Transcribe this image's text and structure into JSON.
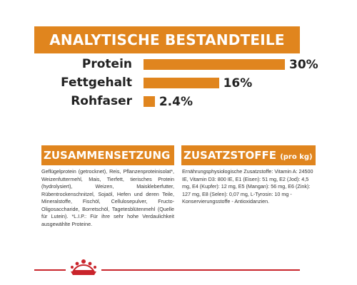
{
  "analysis": {
    "title": "ANALYTISCHE BESTANDTEILE",
    "rows": [
      {
        "label": "Protein",
        "value_text": "30%",
        "percent": 30
      },
      {
        "label": "Fettgehalt",
        "value_text": "16%",
        "percent": 16
      },
      {
        "label": "Rohfaser",
        "value_text": "2.4%",
        "percent": 2.4
      }
    ]
  },
  "composition": {
    "title": "ZUSAMMENSETZUNG",
    "text": "Geflügelprotein (getrocknet), Reis, Pflanzenproteinisolat*, Weizenfuttermehl, Mais, Tierfett, tierisches Protein (hydrolysiert), Weizen, Maiskleberfutter, Rübentrockenschnitzel, Sojaöl, Hefen und deren Teile, Mineralstoffe, Fischöl, Cellulosepulver, Fructo-Oligosaccharide, Borretschöl, Tagetesblütenmehl (Quelle für Lutein). *L.I.P.: Für ihre sehr hohe Verdaulichkeit ausgewählte Proteine."
  },
  "additives": {
    "title": "ZUSATZSTOFFE",
    "title_suffix": "(pro kg)",
    "text": "Ernährungsphysiologische Zusatzstoffe: Vitamin A: 24500 IE, Vitamin D3: 800 IE, E1 (Eisen): 51 mg, E2 (Jod): 4,5 mg, E4 (Kupfer): 12 mg, E5 (Mangan): 56 mg, E6 (Zink): 127 mg, E8 (Selen): 0,07 mg, L-Tyrosin: 10 mg - Konservierungsstoffe - Antioxidanzien."
  },
  "colors": {
    "accent": "#e0851e",
    "footer_line": "#c9242b"
  },
  "logo": {
    "icon": "crown-icon"
  }
}
